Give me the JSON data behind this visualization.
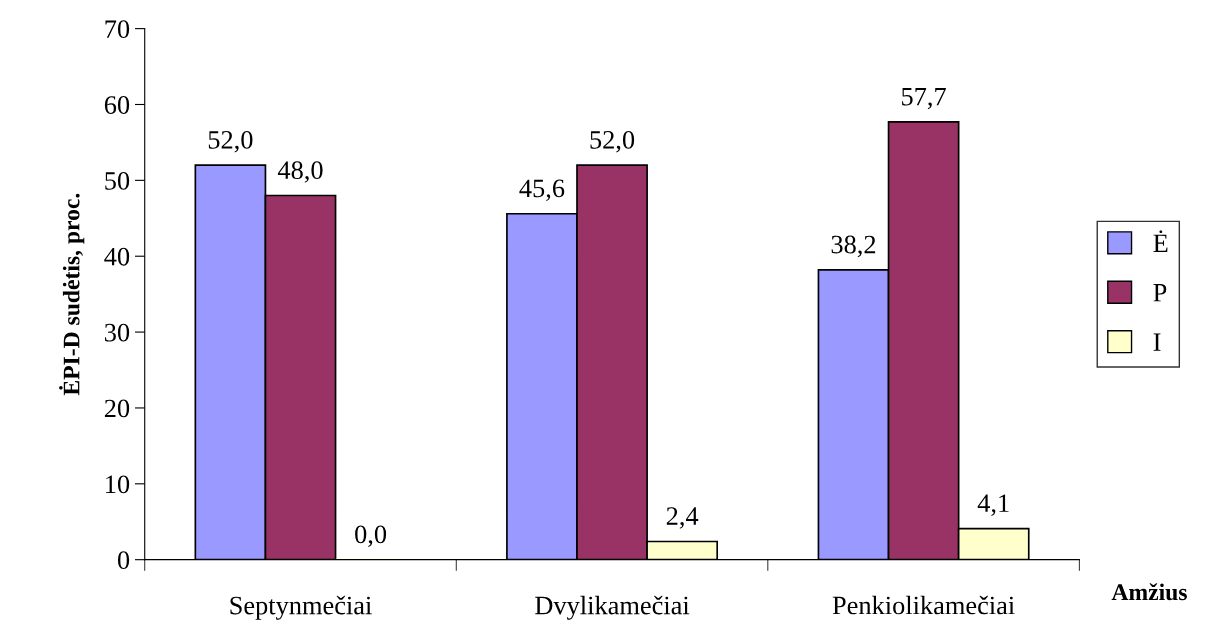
{
  "chart_data": {
    "type": "bar",
    "ylabel": "ĖPI-D sudėtis, proc.",
    "xlabel": "Amžius",
    "categories": [
      "Septynmečiai",
      "Dvylikamečiai",
      "Penkiolikamečiai"
    ],
    "series": [
      {
        "name": "Ė",
        "color": "#9999ff",
        "values": [
          52.0,
          45.6,
          38.2
        ],
        "value_labels": [
          "52,0",
          "45,6",
          "38,2"
        ]
      },
      {
        "name": "P",
        "color": "#993366",
        "values": [
          48.0,
          52.0,
          57.7
        ],
        "value_labels": [
          "48,0",
          "52,0",
          "57,7"
        ]
      },
      {
        "name": "I",
        "color": "#ffffcc",
        "values": [
          0.0,
          2.4,
          4.1
        ],
        "value_labels": [
          "0,0",
          "2,4",
          "4,1"
        ]
      }
    ],
    "ylim": [
      0,
      70
    ],
    "yticks": [
      0,
      10,
      20,
      30,
      40,
      50,
      60,
      70
    ],
    "grid": false,
    "legend": "right"
  }
}
